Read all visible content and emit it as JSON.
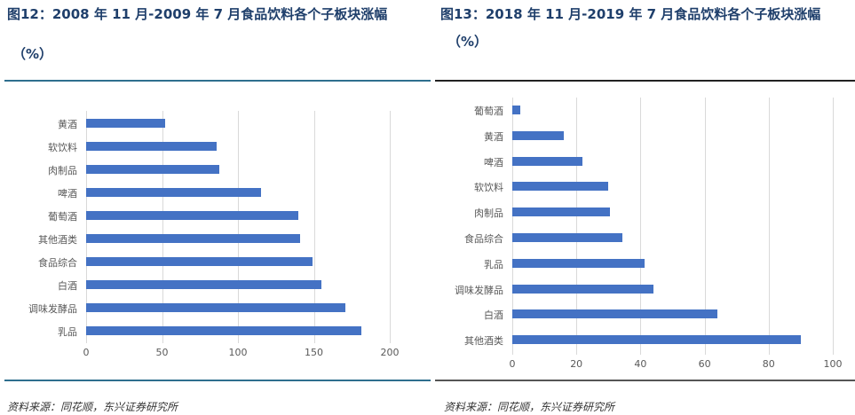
{
  "left": {
    "title": "图12：2008 年 11 月-2009 年 7 月食品饮料各个子板块涨幅",
    "subtitle": "（%）",
    "source": "资料来源：同花顺，东兴证券研究所"
  },
  "right": {
    "title": "图13：2018 年 11 月-2019 年 7 月食品饮料各个子板块涨幅",
    "subtitle": "（%）",
    "source": "资料来源：同花顺，东兴证券研究所"
  },
  "colors": {
    "bar": "#4472c4",
    "title": "#1f3f6b",
    "rule_left": "#2e6f8e",
    "rule_right": "#222222",
    "grid": "#d9d9d9"
  },
  "chart_data": [
    {
      "type": "bar",
      "orientation": "horizontal",
      "title": "图12：2008 年 11 月-2009 年 7 月食品饮料各个子板块涨幅（%）",
      "categories": [
        "黄酒",
        "软饮料",
        "肉制品",
        "啤酒",
        "葡萄酒",
        "其他酒类",
        "食品综合",
        "白酒",
        "调味发酵品",
        "乳品"
      ],
      "values": [
        52,
        86,
        88,
        115,
        140,
        141,
        149,
        155,
        171,
        181
      ],
      "xlabel": "",
      "ylabel": "",
      "xlim": [
        0,
        200
      ],
      "xticks": [
        0,
        50,
        100,
        150,
        200
      ],
      "grid": true,
      "legend": "none"
    },
    {
      "type": "bar",
      "orientation": "horizontal",
      "title": "图13：2018 年 11 月-2019 年 7 月食品饮料各个子板块涨幅（%）",
      "categories": [
        "葡萄酒",
        "黄酒",
        "啤酒",
        "软饮料",
        "肉制品",
        "食品综合",
        "乳品",
        "调味发酵品",
        "白酒",
        "其他酒类"
      ],
      "values": [
        2.5,
        16,
        22,
        30,
        30.5,
        34.3,
        41.3,
        44,
        64,
        90
      ],
      "xlabel": "",
      "ylabel": "",
      "xlim": [
        0,
        100
      ],
      "xticks": [
        0,
        20,
        40,
        60,
        80,
        100
      ],
      "grid": true,
      "legend": "none"
    }
  ]
}
